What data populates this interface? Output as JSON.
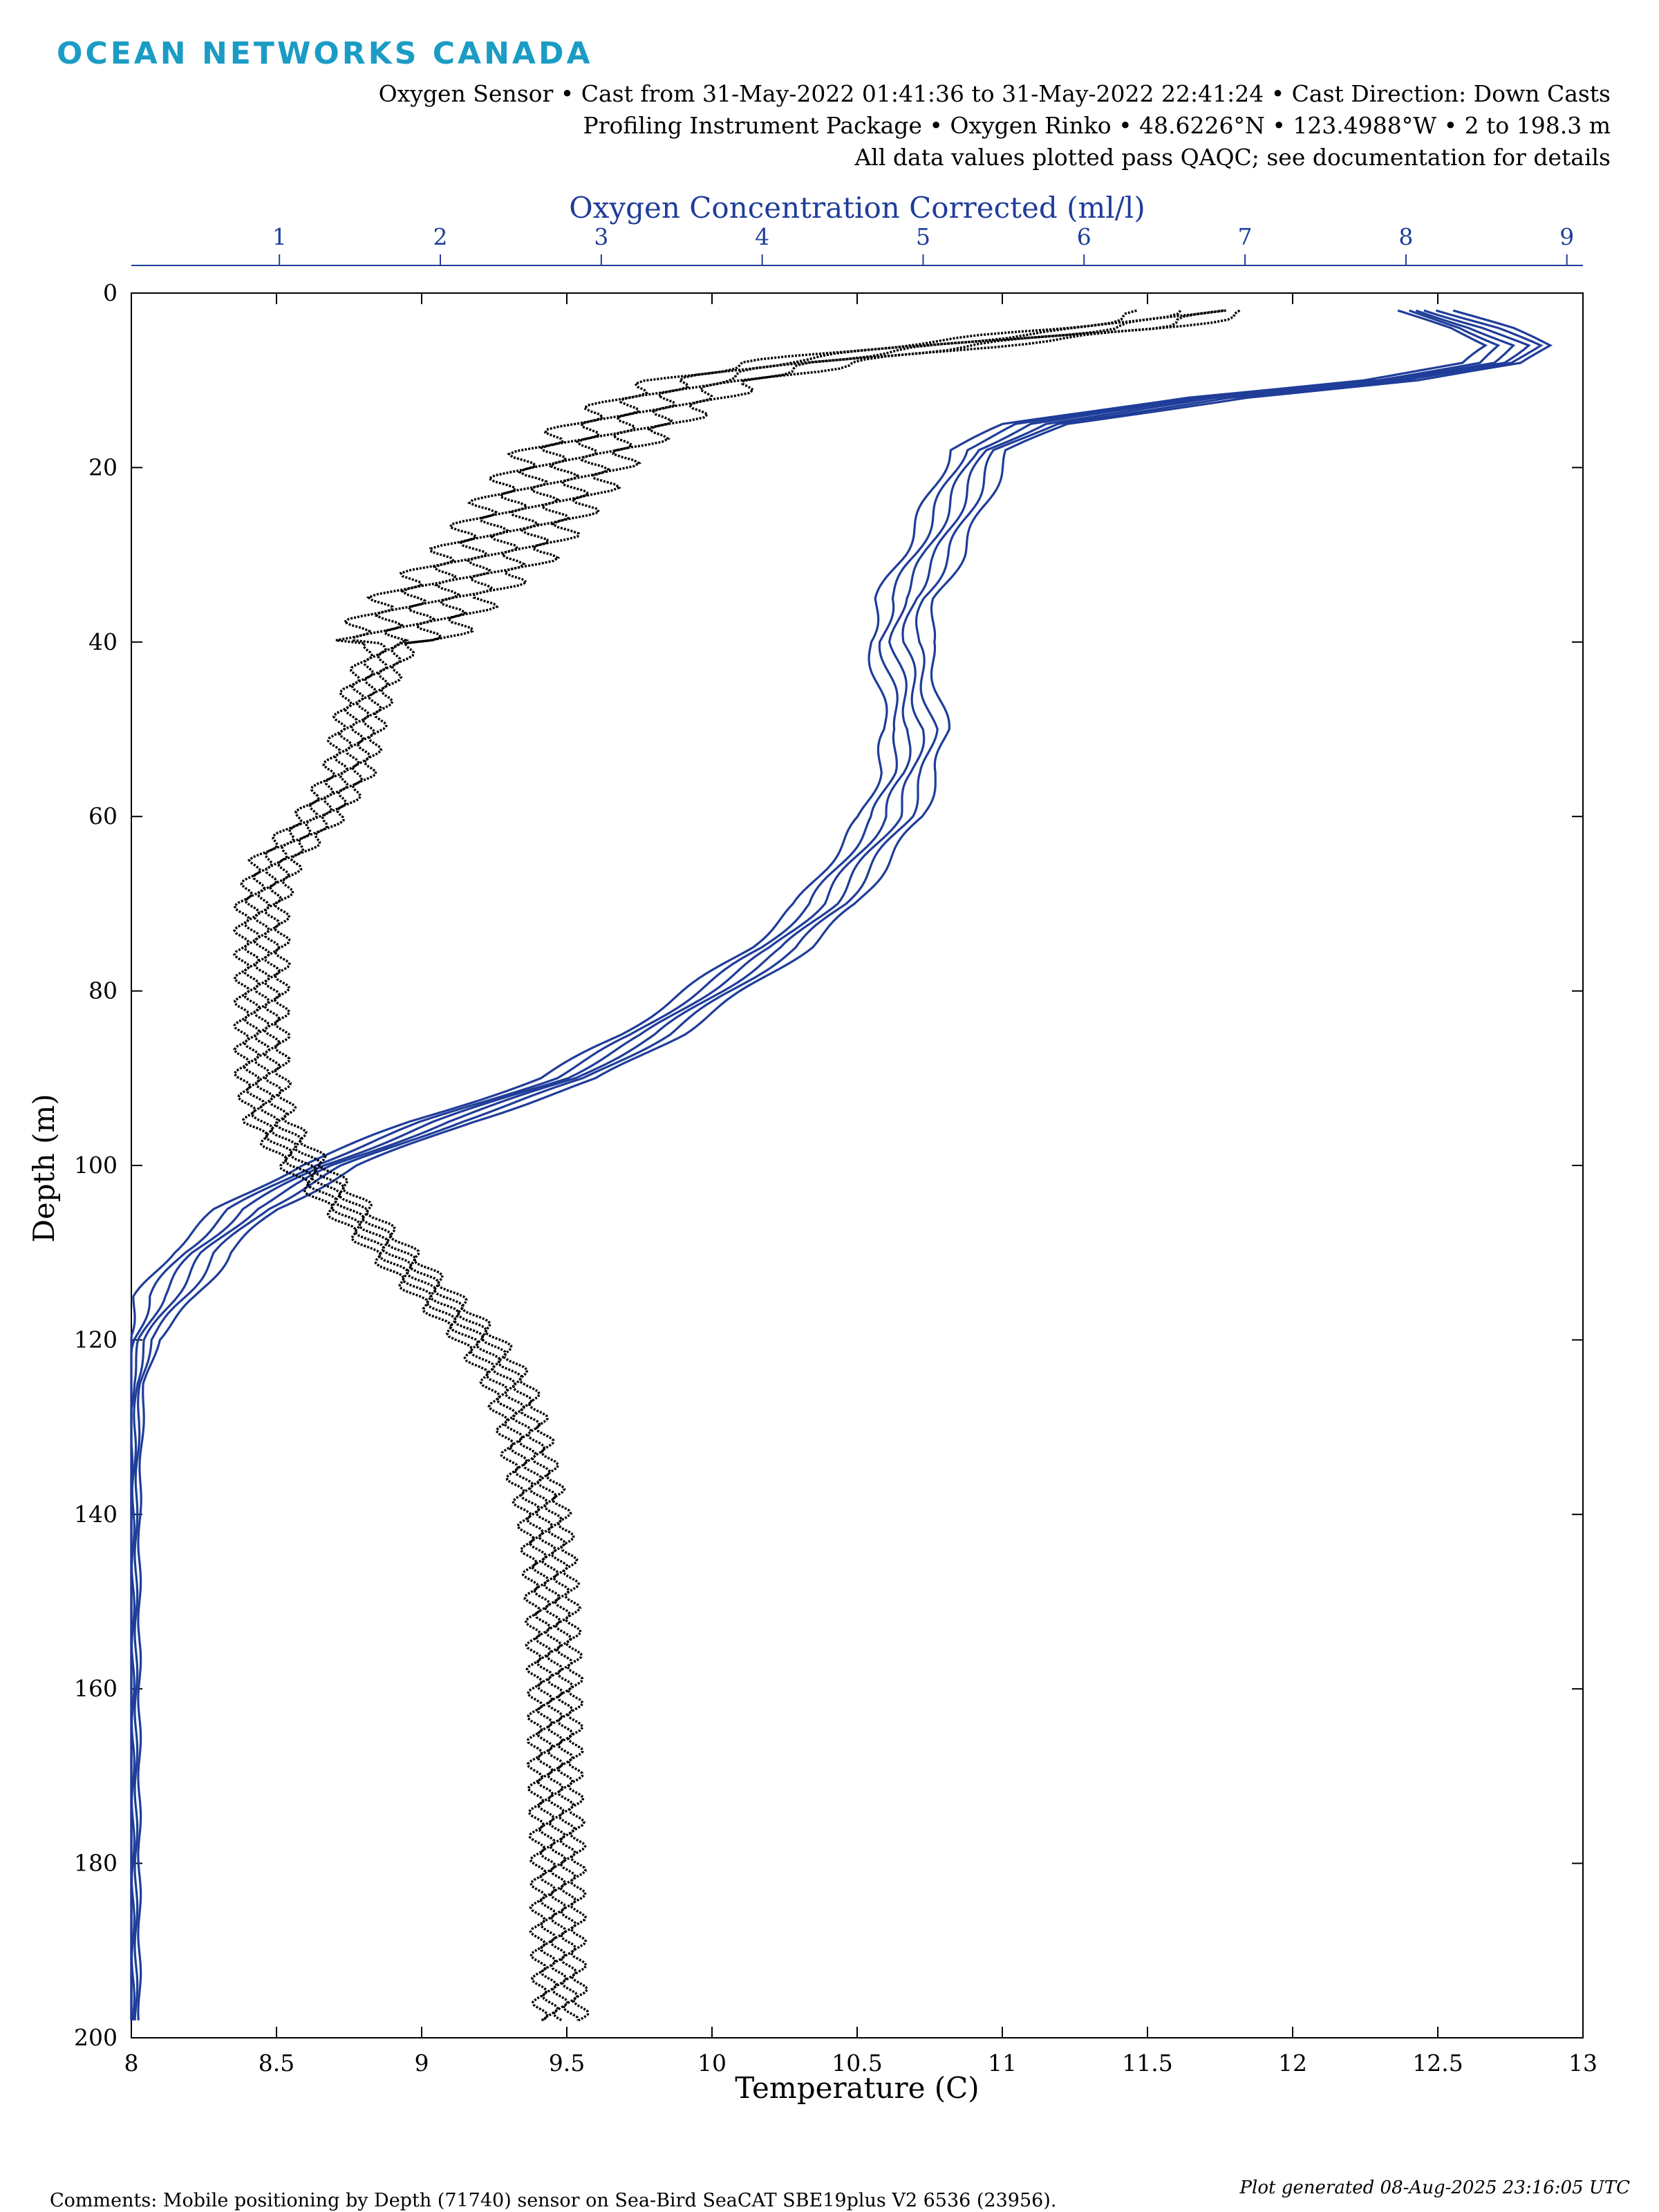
{
  "header": {
    "logo_text": "OCEAN NETWORKS CANADA",
    "line1": "Oxygen Sensor • Cast from 31-May-2022 01:41:36 to 31-May-2022 22:41:24 • Cast Direction: Down Casts",
    "line2": "Profiling Instrument Package • Oxygen Rinko • 48.6226°N • 123.4988°W • 2 to 198.3 m",
    "line3": "All data values plotted pass QAQC; see documentation for details"
  },
  "footer": {
    "comment": "Comments: Mobile positioning by Depth (71740) sensor on Sea-Bird SeaCAT SBE19plus V2 6536 (23956).",
    "generated": "Plot generated 08-Aug-2025 23:16:05 UTC"
  },
  "colors": {
    "temperature": "#000000",
    "oxygen": "#1f3d99",
    "logo": "#1a9cc4"
  },
  "chart_data": {
    "type": "scatter",
    "xlabel": "Temperature (C)",
    "x2label": "Oxygen Concentration Corrected (ml/l)",
    "ylabel": "Depth (m)",
    "xlim": [
      8,
      13
    ],
    "x2lim": [
      0.08,
      9.1
    ],
    "ylim": [
      200,
      0
    ],
    "y_reversed": true,
    "grid": false,
    "xticks": [
      "8",
      "8.5",
      "9",
      "9.5",
      "10",
      "10.5",
      "11",
      "11.5",
      "12",
      "12.5",
      "13"
    ],
    "x2ticks": [
      "1",
      "2",
      "3",
      "4",
      "5",
      "6",
      "7",
      "8",
      "9"
    ],
    "yticks": [
      "0",
      "20",
      "40",
      "60",
      "80",
      "100",
      "120",
      "140",
      "160",
      "180",
      "200"
    ],
    "series": [
      {
        "axis": "bottom",
        "color": "#000000",
        "depth": [
          2,
          4,
          6,
          8,
          10,
          12,
          15,
          18,
          22,
          26,
          30,
          35,
          40,
          45,
          50,
          55,
          60,
          65,
          70,
          75,
          80,
          85,
          90,
          95,
          100,
          105,
          110,
          115,
          120,
          125,
          130,
          135,
          140,
          145,
          150,
          160,
          170,
          180,
          190,
          198
        ],
        "temperature": [
          11.7,
          11.4,
          10.8,
          10.3,
          10.0,
          9.85,
          9.7,
          9.55,
          9.45,
          9.35,
          9.25,
          9.05,
          8.9,
          8.82,
          8.78,
          8.75,
          8.65,
          8.5,
          8.45,
          8.45,
          8.45,
          8.45,
          8.45,
          8.48,
          8.6,
          8.75,
          8.9,
          9.05,
          9.2,
          9.3,
          9.35,
          9.38,
          9.42,
          9.44,
          9.45,
          9.46,
          9.46,
          9.47,
          9.47,
          9.48
        ]
      },
      {
        "axis": "top",
        "color": "#1f3d99",
        "depth": [
          2,
          4,
          6,
          8,
          10,
          12,
          15,
          18,
          22,
          26,
          30,
          35,
          40,
          45,
          50,
          55,
          60,
          65,
          70,
          75,
          80,
          85,
          90,
          95,
          100,
          105,
          110,
          115,
          120,
          125,
          130,
          140,
          150,
          160,
          170,
          180,
          190,
          198
        ],
        "oxygen": [
          8.1,
          8.45,
          8.7,
          8.55,
          7.9,
          6.8,
          5.7,
          5.35,
          5.25,
          5.15,
          5.05,
          4.9,
          4.85,
          4.9,
          4.95,
          4.9,
          4.8,
          4.6,
          4.4,
          4.1,
          3.7,
          3.3,
          2.8,
          2.0,
          1.3,
          0.8,
          0.5,
          0.3,
          0.15,
          0.1,
          0.09,
          0.08,
          0.08,
          0.08,
          0.08,
          0.08,
          0.08,
          0.08
        ]
      }
    ]
  }
}
